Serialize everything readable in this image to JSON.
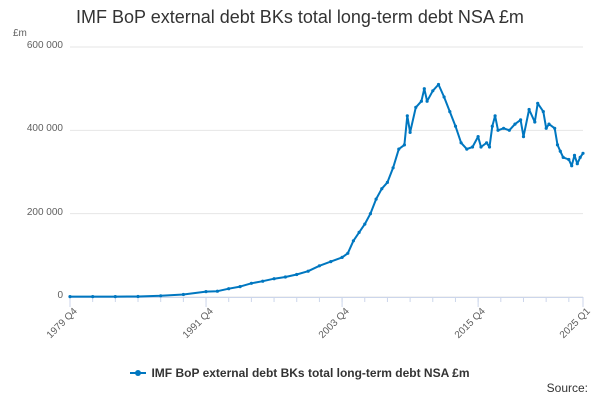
{
  "chart_data": {
    "type": "line",
    "title": "IMF BoP external debt BKs total long-term debt NSA £m",
    "unit_label": "£m",
    "ylim": [
      0,
      600000
    ],
    "y_ticks": [
      {
        "value": 0,
        "label": "0"
      },
      {
        "value": 200000,
        "label": "200 000"
      },
      {
        "value": 400000,
        "label": "400 000"
      },
      {
        "value": 600000,
        "label": "600 000"
      }
    ],
    "x_range": [
      "1979 Q4",
      "2025 Q1"
    ],
    "x_ticks": [
      "1979 Q4",
      "1991 Q4",
      "2003 Q4",
      "2015 Q4",
      "2025 Q1"
    ],
    "grid": "horizontal",
    "legend_position": "bottom",
    "source_label": "Source:",
    "color": "#0077c0",
    "series": [
      {
        "name": "IMF BoP external debt BKs total long-term debt NSA £m",
        "points": [
          [
            "1979 Q4",
            1000
          ],
          [
            "1981 Q4",
            1000
          ],
          [
            "1983 Q4",
            1000
          ],
          [
            "1985 Q4",
            1200
          ],
          [
            "1987 Q4",
            3000
          ],
          [
            "1989 Q4",
            6000
          ],
          [
            "1991 Q4",
            13000
          ],
          [
            "1992 Q4",
            14000
          ],
          [
            "1993 Q4",
            20000
          ],
          [
            "1994 Q4",
            25000
          ],
          [
            "1995 Q4",
            33000
          ],
          [
            "1996 Q4",
            38000
          ],
          [
            "1997 Q4",
            44000
          ],
          [
            "1998 Q4",
            48000
          ],
          [
            "1999 Q4",
            54000
          ],
          [
            "2000 Q4",
            62000
          ],
          [
            "2001 Q4",
            75000
          ],
          [
            "2002 Q4",
            85000
          ],
          [
            "2003 Q4",
            95000
          ],
          [
            "2004 Q2",
            105000
          ],
          [
            "2004 Q4",
            135000
          ],
          [
            "2005 Q2",
            155000
          ],
          [
            "2005 Q4",
            175000
          ],
          [
            "2006 Q2",
            200000
          ],
          [
            "2006 Q4",
            235000
          ],
          [
            "2007 Q2",
            260000
          ],
          [
            "2007 Q4",
            275000
          ],
          [
            "2008 Q2",
            310000
          ],
          [
            "2008 Q4",
            355000
          ],
          [
            "2009 Q2",
            365000
          ],
          [
            "2009 Q3",
            435000
          ],
          [
            "2009 Q4",
            395000
          ],
          [
            "2010 Q2",
            455000
          ],
          [
            "2010 Q4",
            470000
          ],
          [
            "2011 Q1",
            500000
          ],
          [
            "2011 Q2",
            470000
          ],
          [
            "2011 Q4",
            495000
          ],
          [
            "2012 Q2",
            510000
          ],
          [
            "2012 Q4",
            480000
          ],
          [
            "2013 Q2",
            445000
          ],
          [
            "2013 Q4",
            410000
          ],
          [
            "2014 Q2",
            370000
          ],
          [
            "2014 Q4",
            355000
          ],
          [
            "2015 Q2",
            360000
          ],
          [
            "2015 Q4",
            385000
          ],
          [
            "2016 Q1",
            360000
          ],
          [
            "2016 Q3",
            370000
          ],
          [
            "2016 Q4",
            360000
          ],
          [
            "2017 Q1",
            410000
          ],
          [
            "2017 Q2",
            435000
          ],
          [
            "2017 Q3",
            400000
          ],
          [
            "2018 Q1",
            405000
          ],
          [
            "2018 Q3",
            400000
          ],
          [
            "2019 Q1",
            415000
          ],
          [
            "2019 Q3",
            425000
          ],
          [
            "2019 Q4",
            385000
          ],
          [
            "2020 Q2",
            450000
          ],
          [
            "2020 Q4",
            420000
          ],
          [
            "2021 Q1",
            465000
          ],
          [
            "2021 Q3",
            445000
          ],
          [
            "2021 Q4",
            405000
          ],
          [
            "2022 Q1",
            415000
          ],
          [
            "2022 Q3",
            405000
          ],
          [
            "2022 Q4",
            365000
          ],
          [
            "2023 Q1",
            350000
          ],
          [
            "2023 Q2",
            335000
          ],
          [
            "2023 Q4",
            330000
          ],
          [
            "2024 Q1",
            315000
          ],
          [
            "2024 Q2",
            340000
          ],
          [
            "2024 Q3",
            320000
          ],
          [
            "2024 Q4",
            335000
          ],
          [
            "2025 Q1",
            345000
          ]
        ]
      }
    ]
  }
}
